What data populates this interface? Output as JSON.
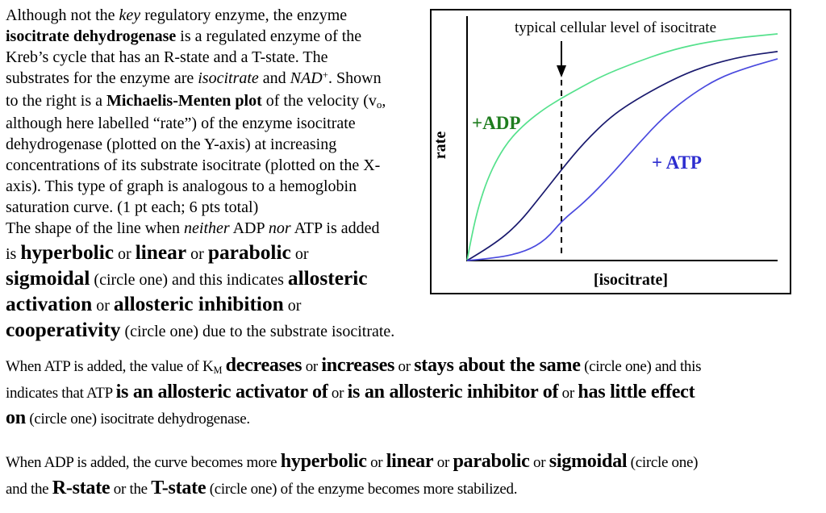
{
  "page": {
    "background": "#ffffff",
    "paragraphs": {
      "intro": [
        [
          [
            "Although not the ",
            "n"
          ],
          [
            "key",
            "i"
          ],
          [
            " regulatory enzyme, the enzyme",
            "n"
          ]
        ],
        [
          [
            "isocitrate dehydrogenase",
            "b"
          ],
          [
            " is a regulated enzyme of the",
            "n"
          ]
        ],
        [
          [
            "Kreb’s cycle that has an R-state and a T-state. The",
            "n"
          ]
        ],
        [
          [
            "substrates for the enzyme are ",
            "n"
          ],
          [
            "isocitrate",
            "i"
          ],
          [
            " and ",
            "n"
          ],
          [
            "NAD",
            "i"
          ],
          [
            "+",
            "sup"
          ],
          [
            ". Shown",
            "n"
          ]
        ],
        [
          [
            "to the right is a ",
            "n"
          ],
          [
            "Michaelis-Menten plot",
            "b"
          ],
          [
            " of the velocity (v",
            "n"
          ],
          [
            "o",
            "sub"
          ],
          [
            ",",
            "n"
          ]
        ],
        [
          [
            "although here labelled “rate”) of the enzyme isocitrate",
            "n"
          ]
        ],
        [
          [
            "dehydrogenase (plotted on the Y-axis) at increasing",
            "n"
          ]
        ],
        [
          [
            "concentrations of its substrate isocitrate (plotted on the X-",
            "n"
          ]
        ],
        [
          [
            "axis). This type of graph is analogous to a hemoglobin",
            "n"
          ]
        ],
        [
          [
            "saturation curve. (1 pt each; 6 pts total)",
            "n"
          ]
        ]
      ],
      "question1": [
        [
          [
            "The shape of the line when ",
            "n"
          ],
          [
            "neither",
            "i"
          ],
          [
            " ADP ",
            "n"
          ],
          [
            "nor",
            "i"
          ],
          [
            " ATP is added",
            "n"
          ]
        ],
        [
          [
            "is ",
            "n"
          ],
          [
            "hyperbolic",
            "B"
          ],
          [
            " or ",
            "n"
          ],
          [
            "linear",
            "B"
          ],
          [
            " or ",
            "n"
          ],
          [
            "parabolic",
            "B"
          ],
          [
            " or",
            "n"
          ]
        ],
        [
          [
            "sigmoidal",
            "B"
          ],
          [
            " (circle one) and this indicates ",
            "n"
          ],
          [
            "allosteric",
            "B"
          ]
        ],
        [
          [
            "activation",
            "B"
          ],
          [
            " or ",
            "n"
          ],
          [
            "allosteric inhibition",
            "B"
          ],
          [
            " or",
            "n"
          ]
        ],
        [
          [
            "cooperativity",
            "B"
          ],
          [
            " (circle one) due to the substrate isocitrate.",
            "n"
          ]
        ]
      ],
      "question2": [
        [
          [
            "When ATP is added, the value of K",
            "n"
          ],
          [
            "M",
            "sub"
          ],
          [
            " ",
            "n"
          ],
          [
            "decreases",
            "B"
          ],
          [
            " or ",
            "n"
          ],
          [
            "increases",
            "B"
          ],
          [
            " or ",
            "n"
          ],
          [
            "stays about the same",
            "B"
          ],
          [
            " (circle one) and this",
            "n"
          ]
        ],
        [
          [
            "indicates that ATP ",
            "n"
          ],
          [
            "is an allosteric activator of",
            "B"
          ],
          [
            " or ",
            "n"
          ],
          [
            "is an allosteric inhibitor of",
            "B"
          ],
          [
            " or ",
            "n"
          ],
          [
            "has little effect",
            "B"
          ]
        ],
        [
          [
            "on",
            "B"
          ],
          [
            " (circle one) isocitrate dehydrogenase.",
            "n"
          ]
        ]
      ],
      "question3": [
        [
          [
            "When ADP is added, the curve becomes more ",
            "n"
          ],
          [
            "hyperbolic",
            "B"
          ],
          [
            " or ",
            "n"
          ],
          [
            "linear",
            "B"
          ],
          [
            " or ",
            "n"
          ],
          [
            "parabolic",
            "B"
          ],
          [
            " or ",
            "n"
          ],
          [
            "sigmoidal",
            "B"
          ],
          [
            " (circle one)",
            "n"
          ]
        ],
        [
          [
            "and the ",
            "n"
          ],
          [
            "R-state",
            "B"
          ],
          [
            " or the ",
            "n"
          ],
          [
            "T-state",
            "B"
          ],
          [
            " (circle one) of the enzyme becomes more stabilized.",
            "n"
          ]
        ]
      ]
    }
  },
  "chart_data": {
    "type": "line",
    "title": "",
    "xlabel": "[isocitrate]",
    "ylabel": "rate",
    "x_range_normalized": [
      0,
      1
    ],
    "y_range_normalized": [
      0,
      1
    ],
    "grid": false,
    "legend_position": "inline-labels",
    "layout": {
      "border_color": "#000000",
      "background": "#ffffff",
      "axis_color": "#000000"
    },
    "annotation": {
      "text": "typical cellular level of isocitrate",
      "x": 0.304,
      "style": "dashed-vertical-line-with-arrow"
    },
    "series": [
      {
        "id": "adp",
        "label": "+ADP",
        "shape": "hyperbolic",
        "color": "#55e18c",
        "label_color": "#1f7d1f",
        "points": [
          [
            0,
            0
          ],
          [
            0.018,
            0.131
          ],
          [
            0.039,
            0.248
          ],
          [
            0.065,
            0.355
          ],
          [
            0.099,
            0.454
          ],
          [
            0.14,
            0.539
          ],
          [
            0.192,
            0.61
          ],
          [
            0.249,
            0.67
          ],
          [
            0.304,
            0.716
          ],
          [
            0.369,
            0.766
          ],
          [
            0.442,
            0.819
          ],
          [
            0.538,
            0.872
          ],
          [
            0.642,
            0.922
          ],
          [
            0.745,
            0.957
          ],
          [
            0.862,
            0.982
          ],
          [
            1,
            1
          ]
        ]
      },
      {
        "id": "no-adp-no-atp",
        "label": "",
        "shape": "sigmoidal",
        "color": "#1a1a6e",
        "label_color": "#1a1a6e",
        "points": [
          [
            0,
            0
          ],
          [
            0.083,
            0.067
          ],
          [
            0.161,
            0.156
          ],
          [
            0.231,
            0.273
          ],
          [
            0.306,
            0.404
          ],
          [
            0.377,
            0.521
          ],
          [
            0.465,
            0.638
          ],
          [
            0.551,
            0.716
          ],
          [
            0.681,
            0.812
          ],
          [
            0.784,
            0.865
          ],
          [
            0.888,
            0.901
          ],
          [
            1,
            0.922
          ]
        ]
      },
      {
        "id": "atp",
        "label": "+ ATP",
        "shape": "sigmoidal",
        "color": "#4a4ade",
        "label_color": "#2d2dcf",
        "points": [
          [
            0,
            0
          ],
          [
            0.096,
            0.011
          ],
          [
            0.187,
            0.039
          ],
          [
            0.255,
            0.092
          ],
          [
            0.306,
            0.177
          ],
          [
            0.377,
            0.255
          ],
          [
            0.465,
            0.379
          ],
          [
            0.551,
            0.514
          ],
          [
            0.636,
            0.638
          ],
          [
            0.725,
            0.734
          ],
          [
            0.81,
            0.805
          ],
          [
            0.901,
            0.851
          ],
          [
            1,
            0.89
          ]
        ]
      }
    ]
  }
}
